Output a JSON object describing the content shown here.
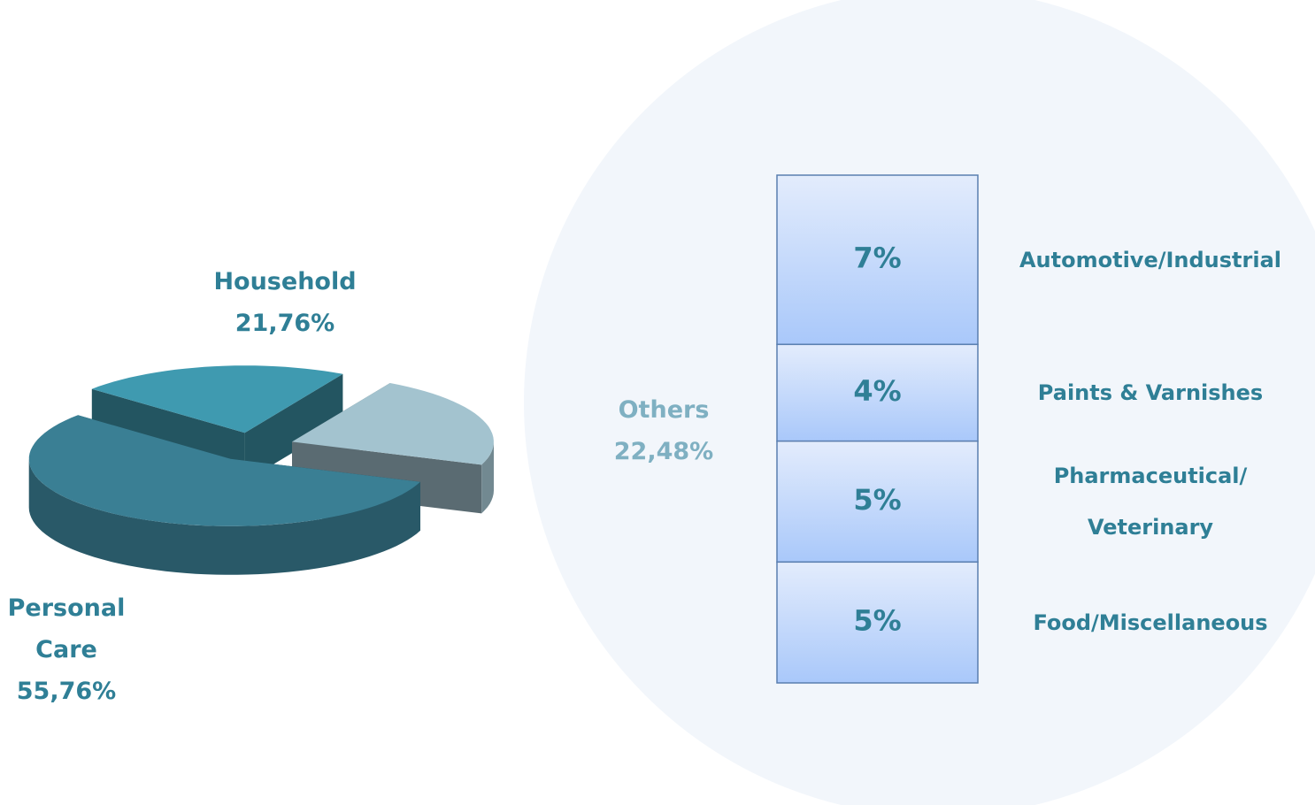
{
  "chart_data": [
    {
      "type": "pie3d",
      "categories": [
        "Personal Care",
        "Household",
        "Others"
      ],
      "values": [
        55.76,
        21.76,
        22.48
      ],
      "value_labels": [
        "55,76%",
        "21,76%",
        "22,48%"
      ],
      "colors": [
        "#3a7f94",
        "#3f9ab0",
        "#a3c3cf"
      ]
    },
    {
      "type": "stacked_column",
      "categories": [
        "Automotive/Industrial",
        "Paints & Varnishes",
        "Pharmaceutical/ Veterinary",
        "Food/Miscellaneous"
      ],
      "values": [
        7,
        4,
        5,
        5
      ],
      "value_labels": [
        "7%",
        "4%",
        "5%",
        "5%"
      ],
      "color": "#a9c8fa"
    }
  ]
}
